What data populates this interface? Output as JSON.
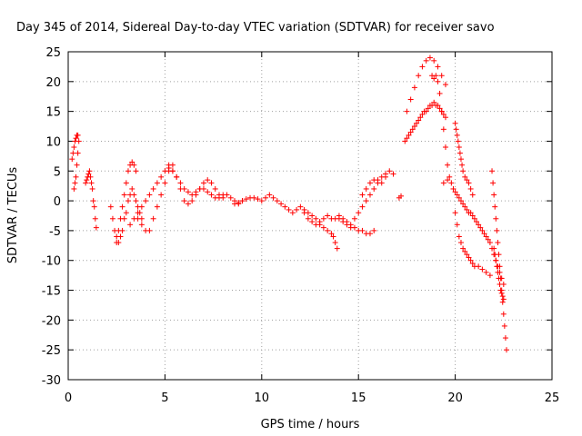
{
  "chart_data": {
    "type": "scatter",
    "title": "Day 345 of 2014, Sidereal Day-to-day VTEC variation (SDTVAR) for receiver savo",
    "xlabel": "GPS time / hours",
    "ylabel": "SDTVAR / TECUs",
    "xlim": [
      0,
      25
    ],
    "ylim": [
      -30,
      25
    ],
    "xticks": [
      0,
      5,
      10,
      15,
      20,
      25
    ],
    "yticks": [
      -30,
      -25,
      -20,
      -15,
      -10,
      -5,
      0,
      5,
      10,
      15,
      20,
      25
    ],
    "grid": true,
    "marker": "+",
    "marker_color": "#ff0000",
    "series": [
      {
        "name": "SDTVAR",
        "x": [
          0.2,
          0.25,
          0.3,
          0.35,
          0.4,
          0.45,
          0.5,
          0.55,
          0.3,
          0.35,
          0.4,
          0.45,
          0.5,
          0.9,
          0.95,
          1.0,
          1.05,
          1.1,
          1.15,
          1.2,
          1.25,
          1.3,
          1.35,
          1.4,
          1.45,
          2.2,
          2.3,
          2.4,
          2.5,
          2.6,
          2.7,
          2.8,
          2.9,
          3.0,
          3.1,
          3.2,
          3.3,
          3.4,
          3.5,
          3.6,
          3.7,
          3.8,
          2.5,
          2.6,
          2.7,
          2.8,
          2.9,
          3.0,
          3.1,
          3.2,
          3.3,
          3.4,
          3.5,
          3.2,
          3.4,
          3.6,
          3.8,
          4.0,
          4.2,
          4.4,
          4.6,
          4.8,
          5.0,
          5.2,
          5.4,
          3.6,
          3.8,
          4.0,
          4.2,
          4.4,
          4.6,
          4.8,
          5.0,
          5.2,
          5.4,
          5.6,
          5.8,
          6.0,
          6.2,
          6.4,
          6.6,
          6.8,
          7.0,
          7.2,
          7.4,
          7.6,
          7.8,
          8.0,
          8.2,
          8.4,
          8.6,
          8.8,
          9.0,
          5.2,
          5.4,
          5.6,
          5.8,
          6.0,
          6.2,
          6.4,
          6.6,
          6.8,
          7.0,
          7.2,
          7.4,
          7.6,
          7.8,
          8.0,
          8.6,
          8.8,
          9.0,
          9.2,
          9.4,
          9.6,
          9.8,
          10.0,
          10.2,
          10.4,
          10.6,
          10.8,
          11.0,
          11.2,
          11.4,
          11.6,
          11.8,
          12.0,
          12.2,
          12.4,
          12.6,
          12.8,
          13.0,
          13.2,
          13.4,
          13.6,
          13.8,
          14.0,
          14.2,
          14.4,
          14.6,
          14.8,
          15.0,
          15.2,
          15.4,
          15.6,
          15.8,
          16.0,
          16.2,
          16.4,
          12.2,
          12.4,
          12.6,
          12.8,
          13.0,
          13.2,
          13.4,
          13.6,
          13.7,
          13.8,
          13.9,
          15.2,
          15.4,
          15.6,
          15.8,
          16.0,
          16.2,
          16.4,
          16.6,
          16.8,
          14.0,
          14.2,
          14.4,
          14.6,
          14.8,
          15.0,
          15.2,
          15.4,
          15.6,
          15.8,
          17.1,
          17.2,
          17.4,
          17.5,
          17.6,
          17.7,
          17.8,
          17.9,
          18.0,
          18.1,
          18.2,
          18.3,
          18.4,
          18.5,
          18.6,
          18.7,
          18.8,
          18.9,
          19.0,
          19.1,
          19.2,
          19.3,
          19.4,
          19.5,
          17.5,
          17.7,
          17.9,
          18.1,
          18.3,
          18.5,
          18.7,
          18.9,
          19.1,
          19.3,
          19.5,
          18.8,
          18.9,
          19.0,
          19.1,
          19.2,
          19.3,
          19.4,
          19.5,
          19.6,
          19.7,
          19.8,
          19.9,
          20.0,
          20.1,
          20.2,
          20.3,
          20.4,
          20.5,
          20.6,
          20.7,
          20.8,
          20.9,
          21.0,
          21.1,
          21.2,
          21.3,
          21.4,
          21.5,
          21.6,
          21.7,
          21.8,
          21.9,
          22.0,
          22.1,
          22.2,
          22.3,
          22.4,
          22.5,
          19.4,
          19.6,
          20.0,
          20.05,
          20.1,
          20.15,
          20.2,
          20.25,
          20.3,
          20.35,
          20.4,
          20.5,
          20.6,
          20.7,
          20.8,
          20.9,
          20.0,
          20.1,
          20.2,
          20.3,
          20.4,
          20.5,
          20.6,
          20.7,
          20.8,
          20.9,
          21.0,
          21.2,
          21.4,
          21.6,
          21.8,
          21.9,
          21.95,
          22.0,
          22.05,
          22.1,
          22.15,
          22.2,
          22.25,
          22.3,
          22.35,
          22.4,
          22.45,
          22.5,
          22.55,
          22.6,
          22.65,
          22.0,
          22.05,
          22.1,
          22.15,
          22.2,
          22.25,
          22.3,
          22.35,
          22.4,
          22.45,
          22.5
        ],
        "y": [
          7,
          8,
          9,
          10,
          10.5,
          11,
          11,
          10,
          2,
          3,
          4,
          6,
          8,
          3,
          3.5,
          4,
          4.5,
          5,
          4,
          3,
          2,
          0,
          -1,
          -3,
          -4.5,
          -1,
          -3,
          -5,
          -6,
          -7,
          -6,
          -5,
          -3,
          -2,
          0,
          1,
          2,
          1,
          0,
          -1,
          -2,
          -3,
          -7,
          -5,
          -3,
          -1,
          1,
          3,
          5,
          6,
          6.5,
          6,
          5,
          -4,
          -3,
          -2,
          -1,
          0,
          1,
          2,
          3,
          4,
          5,
          5.5,
          6,
          -3,
          -4,
          -5,
          -5,
          -3,
          -1,
          1,
          3,
          5,
          5,
          4,
          3,
          2,
          1.5,
          1,
          1.5,
          2,
          2,
          1.5,
          1,
          0.5,
          0.5,
          1,
          1,
          0.5,
          0,
          -0.5,
          0,
          6,
          5,
          4,
          2,
          0,
          -0.5,
          0,
          1,
          2,
          3,
          3.5,
          3,
          2,
          1,
          0.5,
          -0.5,
          -0.3,
          0,
          0.3,
          0.5,
          0.5,
          0.3,
          0,
          0.5,
          1,
          0.5,
          0,
          -0.5,
          -1,
          -1.5,
          -2,
          -1.5,
          -1,
          -1.5,
          -2,
          -2.5,
          -3,
          -3.5,
          -3,
          -2.5,
          -3,
          -3,
          -2.5,
          -3,
          -3.5,
          -4,
          -3,
          -2,
          -1,
          0,
          1,
          2,
          3,
          4,
          4.5,
          -2,
          -3,
          -3.5,
          -4,
          -4,
          -4.5,
          -5,
          -5.5,
          -6,
          -7,
          -8,
          1,
          2,
          3,
          3.5,
          3.5,
          3,
          4,
          5,
          4.5,
          -3,
          -3.5,
          -4,
          -4.5,
          -4.5,
          -5,
          -5,
          -5.5,
          -5.5,
          -5,
          0.5,
          0.8,
          10,
          10.5,
          11,
          11.5,
          12,
          12.5,
          13,
          13.5,
          14,
          14.5,
          15,
          15,
          15.5,
          16,
          16,
          16.5,
          16,
          16,
          15.5,
          15,
          14.5,
          14,
          15,
          17,
          19,
          21,
          22.5,
          23.5,
          24,
          23.5,
          22.5,
          21,
          19.5,
          21,
          20.5,
          21,
          20,
          18,
          15,
          12,
          9,
          6,
          4,
          3,
          2,
          1.5,
          1,
          0.5,
          0,
          -0.5,
          -1,
          -1.5,
          -2,
          -2,
          -2.5,
          -3,
          -3.5,
          -4,
          -4.5,
          -5,
          -5.5,
          -6,
          -6.5,
          -7,
          -8,
          -9,
          -10,
          -11,
          -12,
          -13,
          -14,
          3,
          3.5,
          13,
          12,
          11,
          10,
          9,
          8,
          7,
          6,
          5,
          4,
          3.5,
          3,
          2,
          1,
          -2,
          -4,
          -6,
          -7,
          -8,
          -8.5,
          -9,
          -9.5,
          -10,
          -10.5,
          -11,
          -11,
          -11.5,
          -12,
          -12.5,
          5,
          3,
          1,
          -1,
          -3,
          -5,
          -7,
          -9,
          -11,
          -13,
          -15,
          -17,
          -19,
          -21,
          -23,
          -25,
          -8,
          -9,
          -10,
          -11,
          -12,
          -13,
          -14,
          -15,
          -15.5,
          -16,
          -16.5
        ]
      }
    ]
  }
}
